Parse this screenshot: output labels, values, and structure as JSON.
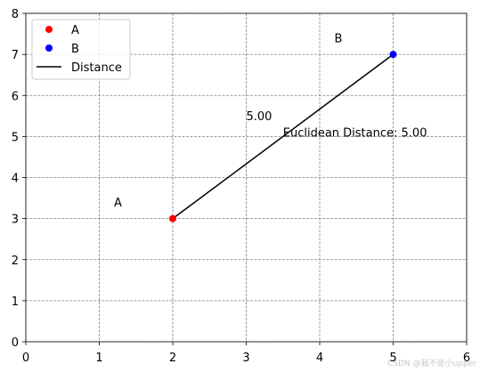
{
  "chart_data": {
    "type": "scatter",
    "xlim": [
      0,
      6
    ],
    "ylim": [
      0,
      8
    ],
    "xticks": [
      0,
      1,
      2,
      3,
      4,
      5,
      6
    ],
    "yticks": [
      0,
      1,
      2,
      3,
      4,
      5,
      6,
      7,
      8
    ],
    "grid": true,
    "legend": "upper left",
    "series": [
      {
        "name": "A",
        "color": "#ff0000",
        "type": "point",
        "x": [
          2
        ],
        "y": [
          3
        ]
      },
      {
        "name": "B",
        "color": "#0000ff",
        "type": "point",
        "x": [
          5
        ],
        "y": [
          7
        ]
      },
      {
        "name": "Distance",
        "color": "#000000",
        "type": "line",
        "x": [
          2,
          5
        ],
        "y": [
          3,
          7
        ]
      }
    ],
    "annotations": [
      {
        "text": "A",
        "x": 1.2,
        "y": 3.3
      },
      {
        "text": "B",
        "x": 4.2,
        "y": 7.3
      },
      {
        "text": "5.00",
        "x": 3.0,
        "y": 5.4
      },
      {
        "text": "Euclidean Distance: 5.00",
        "x": 3.5,
        "y": 5.0
      }
    ],
    "watermark": "CSDN @我不是小upper"
  }
}
